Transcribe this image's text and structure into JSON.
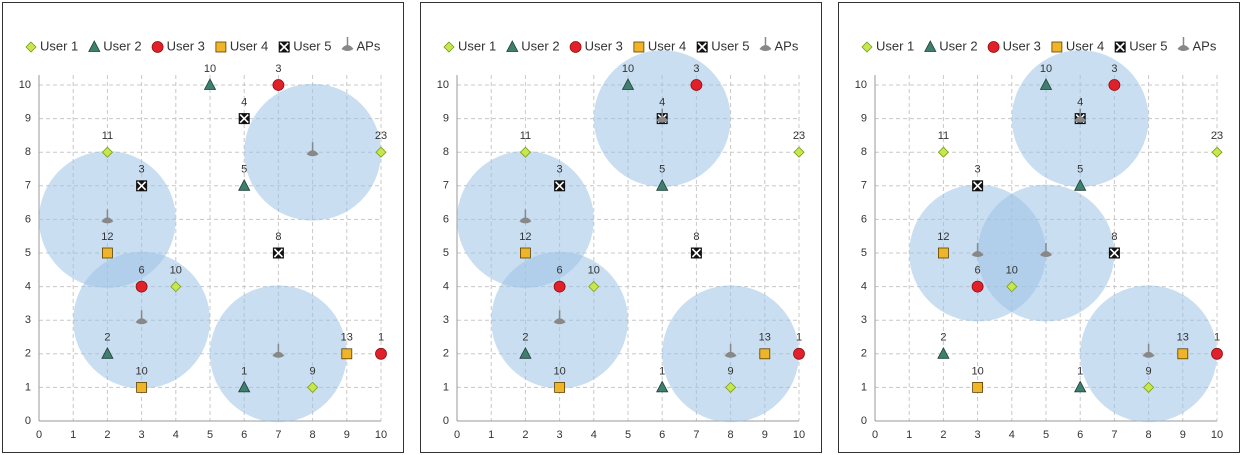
{
  "chart_data": [
    {
      "type": "scatter",
      "xlim": [
        0,
        10
      ],
      "ylim": [
        0,
        10
      ],
      "xticks": [
        0,
        1,
        2,
        3,
        4,
        5,
        6,
        7,
        8,
        9,
        10
      ],
      "yticks": [
        0,
        1,
        2,
        3,
        4,
        5,
        6,
        7,
        8,
        9,
        10
      ],
      "grid": true,
      "area_color": "#9dc3e6",
      "series": [
        {
          "name": "User 1",
          "marker": "diamond",
          "color": "#c6e84a",
          "x": [
            2,
            4,
            10,
            8
          ],
          "values": [
            8,
            4,
            8,
            1
          ],
          "labels": [
            11,
            10,
            23,
            9
          ]
        },
        {
          "name": "User 2",
          "marker": "triangle",
          "color": "#3f7f6f",
          "x": [
            5,
            6,
            2,
            6
          ],
          "values": [
            10,
            7,
            2,
            1
          ],
          "labels": [
            10,
            5,
            2,
            1
          ]
        },
        {
          "name": "User 3",
          "marker": "circle",
          "color": "#e0202a",
          "x": [
            7,
            3,
            10
          ],
          "values": [
            10,
            4,
            2
          ],
          "labels": [
            3,
            6,
            1
          ]
        },
        {
          "name": "User 4",
          "marker": "square",
          "color": "#f0b429",
          "x": [
            2,
            3,
            9
          ],
          "values": [
            5,
            1,
            2
          ],
          "labels": [
            12,
            10,
            13
          ]
        },
        {
          "name": "User 5",
          "marker": "cross",
          "color": "#111111",
          "x": [
            6,
            3,
            7
          ],
          "values": [
            9,
            7,
            5
          ],
          "labels": [
            4,
            3,
            8
          ]
        },
        {
          "name": "APs",
          "marker": "ap",
          "color": "#888888",
          "x": [
            8,
            2,
            3,
            7
          ],
          "values": [
            8,
            6,
            3,
            2
          ],
          "radius": 2
        }
      ]
    },
    {
      "type": "scatter",
      "xlim": [
        0,
        10
      ],
      "ylim": [
        0,
        10
      ],
      "xticks": [
        0,
        1,
        2,
        3,
        4,
        5,
        6,
        7,
        8,
        9,
        10
      ],
      "yticks": [
        0,
        1,
        2,
        3,
        4,
        5,
        6,
        7,
        8,
        9,
        10
      ],
      "grid": true,
      "area_color": "#9dc3e6",
      "series": [
        {
          "name": "User 1",
          "marker": "diamond",
          "color": "#c6e84a",
          "x": [
            2,
            4,
            10,
            8
          ],
          "values": [
            8,
            4,
            8,
            1
          ],
          "labels": [
            11,
            10,
            23,
            9
          ]
        },
        {
          "name": "User 2",
          "marker": "triangle",
          "color": "#3f7f6f",
          "x": [
            5,
            6,
            2,
            6
          ],
          "values": [
            10,
            7,
            2,
            1
          ],
          "labels": [
            10,
            5,
            2,
            1
          ]
        },
        {
          "name": "User 3",
          "marker": "circle",
          "color": "#e0202a",
          "x": [
            7,
            3,
            10
          ],
          "values": [
            10,
            4,
            2
          ],
          "labels": [
            3,
            6,
            1
          ]
        },
        {
          "name": "User 4",
          "marker": "square",
          "color": "#f0b429",
          "x": [
            2,
            3,
            9
          ],
          "values": [
            5,
            1,
            2
          ],
          "labels": [
            12,
            10,
            13
          ]
        },
        {
          "name": "User 5",
          "marker": "cross",
          "color": "#111111",
          "x": [
            6,
            3,
            7
          ],
          "values": [
            9,
            7,
            5
          ],
          "labels": [
            4,
            3,
            8
          ]
        },
        {
          "name": "APs",
          "marker": "ap",
          "color": "#888888",
          "x": [
            6,
            2,
            3,
            8
          ],
          "values": [
            9,
            6,
            3,
            2
          ],
          "radius": 2
        }
      ]
    },
    {
      "type": "scatter",
      "xlim": [
        0,
        10
      ],
      "ylim": [
        0,
        10
      ],
      "xticks": [
        0,
        1,
        2,
        3,
        4,
        5,
        6,
        7,
        8,
        9,
        10
      ],
      "yticks": [
        0,
        1,
        2,
        3,
        4,
        5,
        6,
        7,
        8,
        9,
        10
      ],
      "grid": true,
      "area_color": "#9dc3e6",
      "series": [
        {
          "name": "User 1",
          "marker": "diamond",
          "color": "#c6e84a",
          "x": [
            2,
            4,
            10,
            8
          ],
          "values": [
            8,
            4,
            8,
            1
          ],
          "labels": [
            11,
            10,
            23,
            9
          ]
        },
        {
          "name": "User 2",
          "marker": "triangle",
          "color": "#3f7f6f",
          "x": [
            5,
            6,
            2,
            6
          ],
          "values": [
            10,
            7,
            2,
            1
          ],
          "labels": [
            10,
            5,
            2,
            1
          ]
        },
        {
          "name": "User 3",
          "marker": "circle",
          "color": "#e0202a",
          "x": [
            7,
            3,
            10
          ],
          "values": [
            10,
            4,
            2
          ],
          "labels": [
            3,
            6,
            1
          ]
        },
        {
          "name": "User 4",
          "marker": "square",
          "color": "#f0b429",
          "x": [
            2,
            3,
            9
          ],
          "values": [
            5,
            1,
            2
          ],
          "labels": [
            12,
            10,
            13
          ]
        },
        {
          "name": "User 5",
          "marker": "cross",
          "color": "#111111",
          "x": [
            6,
            3,
            7
          ],
          "values": [
            9,
            7,
            5
          ],
          "labels": [
            4,
            3,
            8
          ]
        },
        {
          "name": "APs",
          "marker": "ap",
          "color": "#888888",
          "x": [
            6,
            3,
            5,
            8
          ],
          "values": [
            9,
            5,
            5,
            2
          ],
          "radius": 2
        }
      ]
    }
  ]
}
